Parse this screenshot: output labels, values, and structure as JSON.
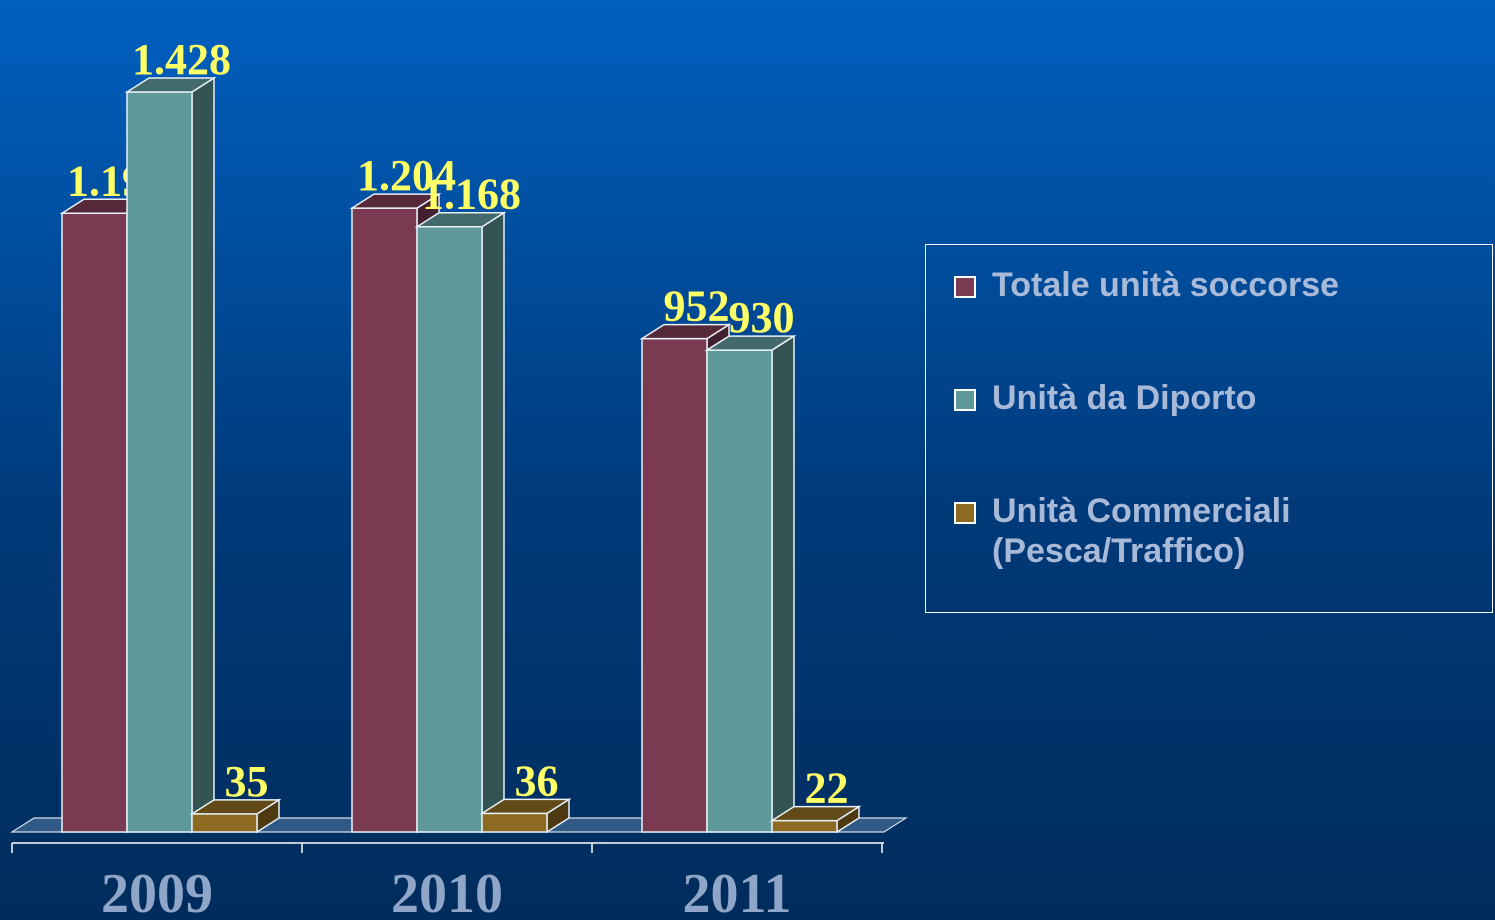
{
  "chart_data": {
    "type": "bar3d",
    "categories": [
      "2009",
      "2010",
      "2011"
    ],
    "series": [
      {
        "name": "Totale unità soccorse",
        "color": "#7a3a52",
        "values": [
          1194,
          1204,
          952
        ],
        "value_labels": [
          "1.194",
          "1.204",
          "952"
        ]
      },
      {
        "name": "Unità da Diporto",
        "color": "#5e9898",
        "values": [
          1428,
          1168,
          930
        ],
        "value_labels": [
          "1.428",
          "1.168",
          "930"
        ]
      },
      {
        "name": "Unità Commerciali (Pesca/Traffico)",
        "color": "#8c6a22",
        "values": [
          35,
          36,
          22
        ],
        "value_labels": [
          "35",
          "36",
          "22"
        ]
      }
    ],
    "legend": "right"
  }
}
